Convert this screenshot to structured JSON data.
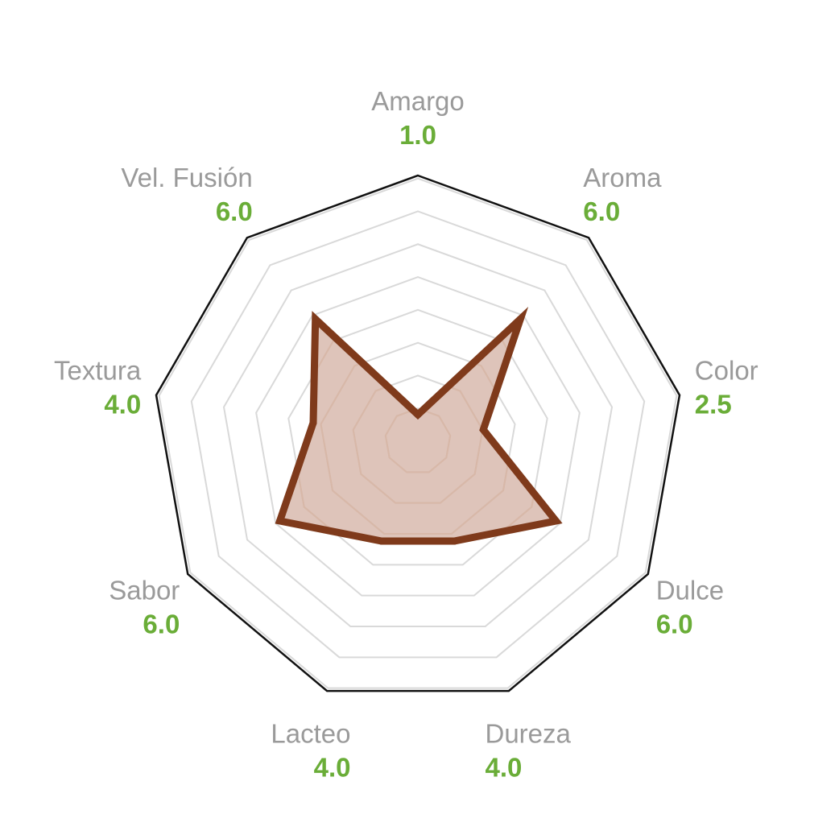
{
  "chart_data": {
    "type": "radar",
    "title": "",
    "scale_max": 10,
    "rings": 8,
    "axes": [
      {
        "name": "Amargo",
        "value": 1.0,
        "label": "1.0"
      },
      {
        "name": "Aroma",
        "value": 6.0,
        "label": "6.0"
      },
      {
        "name": "Color",
        "value": 2.5,
        "label": "2.5"
      },
      {
        "name": "Dulce",
        "value": 6.0,
        "label": "6.0"
      },
      {
        "name": "Dureza",
        "value": 4.0,
        "label": "4.0"
      },
      {
        "name": "Lacteo",
        "value": 4.0,
        "label": "4.0"
      },
      {
        "name": "Sabor",
        "value": 6.0,
        "label": "6.0"
      },
      {
        "name": "Textura",
        "value": 4.0,
        "label": "4.0"
      },
      {
        "name": "Vel. Fusión",
        "value": 6.0,
        "label": "6.0"
      }
    ]
  },
  "colors": {
    "series_stroke": "#7f3a1b",
    "series_fill": "#c9a090",
    "outer_border": "#111111",
    "grid": "#d9d9d9",
    "inner_grid": "#d8b8a8",
    "axis_label": "#9a9a9a",
    "value_label": "#6aad38"
  }
}
